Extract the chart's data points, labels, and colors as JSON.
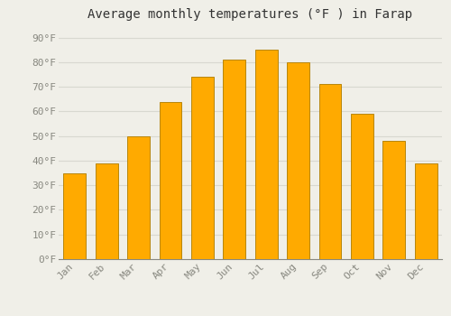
{
  "title": "Average monthly temperatures (°F ) in Farap",
  "months": [
    "Jan",
    "Feb",
    "Mar",
    "Apr",
    "May",
    "Jun",
    "Jul",
    "Aug",
    "Sep",
    "Oct",
    "Nov",
    "Dec"
  ],
  "values": [
    35,
    39,
    50,
    64,
    74,
    81,
    85,
    80,
    71,
    59,
    48,
    39
  ],
  "bar_color": "#FFAA00",
  "bar_edge_color": "#B8860B",
  "background_color": "#F0EFE8",
  "grid_color": "#D8D8D0",
  "yticks": [
    0,
    10,
    20,
    30,
    40,
    50,
    60,
    70,
    80,
    90
  ],
  "ytick_labels": [
    "0°F",
    "10°F",
    "20°F",
    "30°F",
    "40°F",
    "50°F",
    "60°F",
    "70°F",
    "80°F",
    "90°F"
  ],
  "ylim": [
    0,
    95
  ],
  "title_fontsize": 10,
  "tick_fontsize": 8,
  "font_family": "monospace"
}
